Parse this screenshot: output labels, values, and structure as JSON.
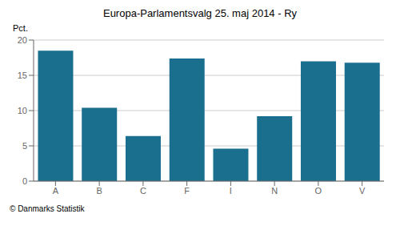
{
  "chart_data": {
    "type": "bar",
    "title": "Europa-Parlamentsvalg 25. maj 2014 - Ry",
    "categories": [
      "A",
      "B",
      "C",
      "F",
      "I",
      "N",
      "O",
      "V"
    ],
    "values": [
      18.5,
      10.4,
      6.4,
      17.4,
      4.6,
      9.2,
      17.0,
      16.8
    ],
    "color": "#1a6e8e",
    "ylabel": "Pct.",
    "ylim": [
      0,
      20
    ],
    "yticks": [
      0,
      5,
      10,
      15,
      20
    ],
    "grid": true,
    "footer": "© Danmarks Statistik"
  }
}
